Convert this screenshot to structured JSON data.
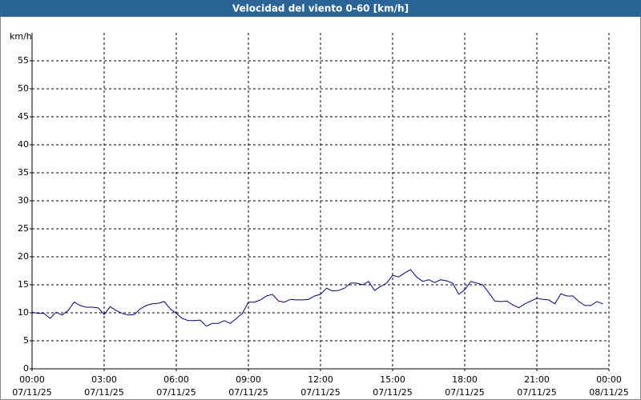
{
  "chart_data": {
    "type": "line",
    "title": "Velocidad del viento 0-60 [km/h]",
    "y_label": "km/h",
    "xlim": [
      0,
      24
    ],
    "ylim": [
      0,
      60
    ],
    "yticks": [
      0,
      5,
      10,
      15,
      20,
      25,
      30,
      35,
      40,
      45,
      50,
      55
    ],
    "xticks": [
      {
        "value": 0,
        "label": "00:00",
        "date": "07/11/25"
      },
      {
        "value": 3,
        "label": "03:00",
        "date": "07/11/25"
      },
      {
        "value": 6,
        "label": "06:00",
        "date": "07/11/25"
      },
      {
        "value": 9,
        "label": "09:00",
        "date": "07/11/25"
      },
      {
        "value": 12,
        "label": "12:00",
        "date": "07/11/25"
      },
      {
        "value": 15,
        "label": "15:00",
        "date": "07/11/25"
      },
      {
        "value": 18,
        "label": "18:00",
        "date": "07/11/25"
      },
      {
        "value": 21,
        "label": "21:00",
        "date": "07/11/25"
      },
      {
        "value": 24,
        "label": "00:00",
        "date": "08/11/25"
      }
    ],
    "grid": true,
    "x": [
      0,
      0.25,
      0.5,
      0.75,
      1,
      1.25,
      1.5,
      1.75,
      2,
      2.25,
      2.5,
      2.75,
      3,
      3.25,
      3.5,
      3.75,
      4,
      4.25,
      4.5,
      4.75,
      5,
      5.25,
      5.5,
      5.75,
      6,
      6.25,
      6.5,
      6.75,
      7,
      7.25,
      7.5,
      7.75,
      8,
      8.25,
      8.5,
      8.75,
      9,
      9.25,
      9.5,
      9.75,
      10,
      10.25,
      10.5,
      10.75,
      11,
      11.25,
      11.5,
      11.75,
      12,
      12.25,
      12.5,
      12.75,
      13,
      13.25,
      13.5,
      13.75,
      14,
      14.25,
      14.5,
      14.75,
      15,
      15.25,
      15.5,
      15.75,
      16,
      16.25,
      16.5,
      16.75,
      17,
      17.25,
      17.5,
      17.75,
      18,
      18.25,
      18.5,
      18.75,
      19,
      19.25,
      19.5,
      19.75,
      20,
      20.25,
      20.5,
      20.75,
      21,
      21.25,
      21.5,
      21.75,
      22,
      22.25,
      22.5,
      22.75,
      23,
      23.25,
      23.5,
      23.75
    ],
    "series": [
      {
        "color": "#00008b",
        "values": [
          10.1,
          9.9,
          9.9,
          9.0,
          10.1,
          9.6,
          10.4,
          11.9,
          11.3,
          11.0,
          11.0,
          10.9,
          9.7,
          11.1,
          10.4,
          9.9,
          9.6,
          9.7,
          10.7,
          11.3,
          11.6,
          11.7,
          12.0,
          10.7,
          9.9,
          9.0,
          8.6,
          8.6,
          8.7,
          7.6,
          8.1,
          8.1,
          8.6,
          8.1,
          9.0,
          9.9,
          11.9,
          11.9,
          12.3,
          13.0,
          13.3,
          12.1,
          11.9,
          12.4,
          12.3,
          12.3,
          12.4,
          13.0,
          13.3,
          14.4,
          13.9,
          14.0,
          14.4,
          15.3,
          15.3,
          15.0,
          15.6,
          14.0,
          14.7,
          15.3,
          16.7,
          16.4,
          17.1,
          17.7,
          16.4,
          15.6,
          15.9,
          15.4,
          15.9,
          15.7,
          15.3,
          13.3,
          14.1,
          15.6,
          15.3,
          15.0,
          13.6,
          12.1,
          12.0,
          12.1,
          11.4,
          10.9,
          11.6,
          12.1,
          12.6,
          12.4,
          12.3,
          11.6,
          13.4,
          13.0,
          13.0,
          12.0,
          11.3,
          11.3,
          12.0,
          11.6
        ]
      }
    ]
  }
}
